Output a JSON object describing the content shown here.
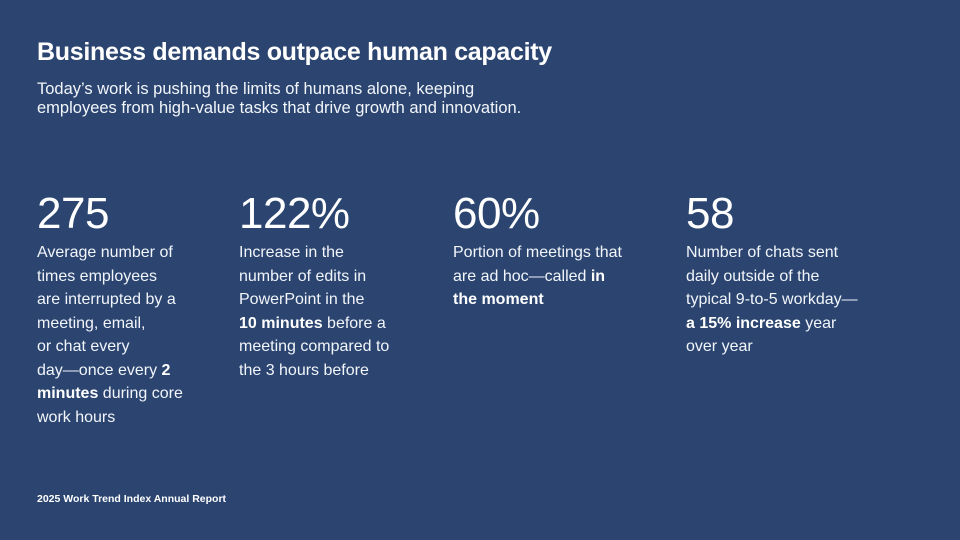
{
  "header": {
    "title": "Business demands outpace human capacity",
    "subtitle_lines": [
      "Today’s work is pushing the limits of humans alone, keeping",
      "employees from high-value tasks that drive growth and innovation."
    ]
  },
  "stats": [
    {
      "value": "275",
      "lines": [
        [
          "Average number of"
        ],
        [
          "times employees"
        ],
        [
          "are interrupted by a"
        ],
        [
          "meeting, email,"
        ],
        [
          "or chat every"
        ],
        [
          "day—once every ",
          "2"
        ],
        [
          "minutes",
          " during core"
        ],
        [
          "work hours"
        ]
      ]
    },
    {
      "value": "122%",
      "lines": [
        [
          "Increase in the"
        ],
        [
          "number of edits in"
        ],
        [
          "PowerPoint in the"
        ],
        [
          "10 minutes",
          " before a"
        ],
        [
          "meeting compared to"
        ],
        [
          "the 3 hours before"
        ]
      ]
    },
    {
      "value": "60%",
      "lines": [
        [
          "Portion of meetings that"
        ],
        [
          "are ad hoc—called ",
          "in"
        ],
        [
          "the moment"
        ]
      ]
    },
    {
      "value": "58",
      "lines": [
        [
          "Number of chats sent"
        ],
        [
          "daily outside of the"
        ],
        [
          "typical 9-to-5 workday—"
        ],
        [
          "a 15% increase",
          " year"
        ],
        [
          "over year"
        ]
      ]
    }
  ],
  "footer": {
    "source": "2025 Work Trend Index Annual Report"
  }
}
